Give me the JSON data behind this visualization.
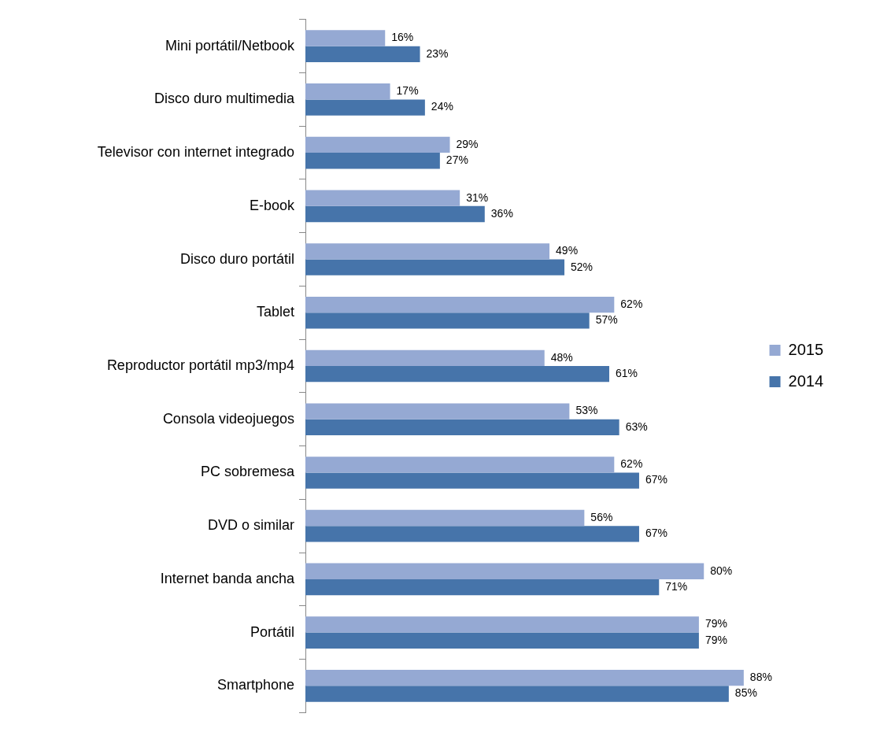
{
  "chart_data": {
    "type": "bar",
    "orientation": "horizontal",
    "legend": "right",
    "categories": [
      "Mini portátil/Netbook",
      "Disco duro multimedia",
      "Televisor con internet integrado",
      "E-book",
      "Disco duro portátil",
      "Tablet",
      "Reproductor portátil mp3/mp4",
      "Consola videojuegos",
      "PC sobremesa",
      "DVD o similar",
      "Internet banda ancha",
      "Portátil",
      "Smartphone"
    ],
    "series": [
      {
        "name": "2015",
        "color": "#95a9d3",
        "values": [
          16,
          17,
          29,
          31,
          49,
          62,
          48,
          53,
          62,
          56,
          80,
          79,
          88
        ],
        "value_labels": [
          "16%",
          "17%",
          "29%",
          "31%",
          "49%",
          "62%",
          "48%",
          "53%",
          "62%",
          "56%",
          "80%",
          "79%",
          "88%"
        ]
      },
      {
        "name": "2014",
        "color": "#4674aa",
        "values": [
          23,
          24,
          27,
          36,
          52,
          57,
          61,
          63,
          67,
          67,
          71,
          79,
          85
        ],
        "value_labels": [
          "23%",
          "24%",
          "27%",
          "36%",
          "52%",
          "57%",
          "61%",
          "63%",
          "67%",
          "67%",
          "71%",
          "79%",
          "85%"
        ]
      }
    ]
  }
}
